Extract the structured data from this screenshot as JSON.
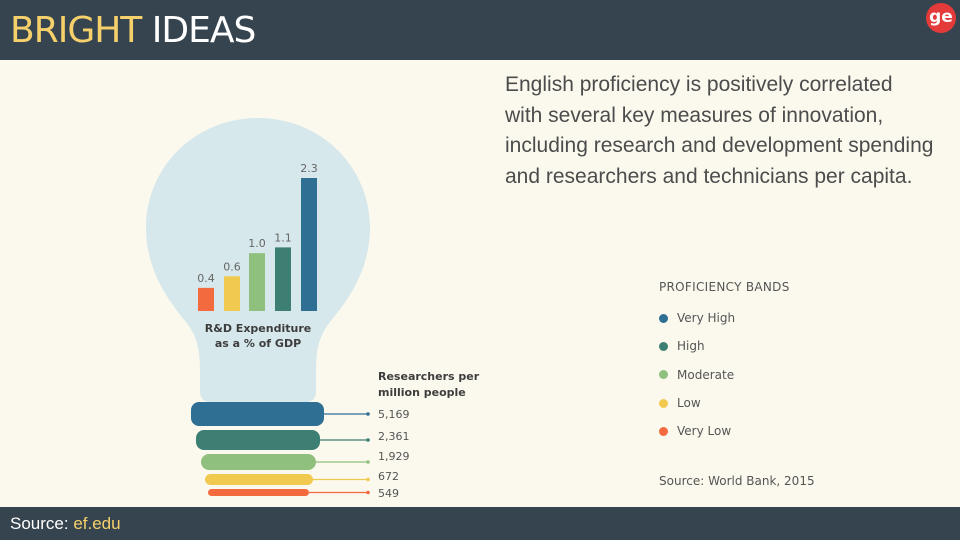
{
  "header": {
    "title_word1": "BRIGHT",
    "title_word2": "IDEAS",
    "logo_text": "ge"
  },
  "description": "English proficiency is positively correlated with several key measures of innovation, including research and development spending and researchers and technicians per capita.",
  "legend": {
    "title": "PROFICIENCY BANDS",
    "items": [
      {
        "label": "Very High",
        "color": "#2f6f94"
      },
      {
        "label": "High",
        "color": "#3d7f72"
      },
      {
        "label": "Moderate",
        "color": "#8fc07d"
      },
      {
        "label": "Low",
        "color": "#f2c94f"
      },
      {
        "label": "Very Low",
        "color": "#f36a3e"
      }
    ]
  },
  "chart_credit": "Source: World Bank, 2015",
  "footer": {
    "source_label": "Source:",
    "source_link": "ef.edu"
  },
  "chart_data": [
    {
      "type": "bar",
      "title": "R&D Expenditure as a % of GDP",
      "title_lines": [
        "R&D Expenditure",
        "as a % of GDP"
      ],
      "categories": [
        "Very Low",
        "Low",
        "Moderate",
        "High",
        "Very High"
      ],
      "values": [
        0.4,
        0.6,
        1.0,
        1.1,
        2.3
      ],
      "value_labels": [
        "0.4",
        "0.6",
        "1.0",
        "1.1",
        "2.3"
      ],
      "colors": [
        "#f36a3e",
        "#f2c94f",
        "#8fc07d",
        "#3d7f72",
        "#2f6f94"
      ],
      "ylim": [
        0,
        2.3
      ]
    },
    {
      "type": "bar",
      "title": "Researchers per million people",
      "title_lines": [
        "Researchers per",
        "million people"
      ],
      "orientation": "horizontal",
      "categories": [
        "Very High",
        "High",
        "Moderate",
        "Low",
        "Very Low"
      ],
      "values": [
        5169,
        2361,
        1929,
        672,
        549
      ],
      "value_labels": [
        "5,169",
        "2,361",
        "1,929",
        "672",
        "549"
      ],
      "colors": [
        "#2f6f94",
        "#3d7f72",
        "#8fc07d",
        "#f2c94f",
        "#f36a3e"
      ]
    }
  ]
}
